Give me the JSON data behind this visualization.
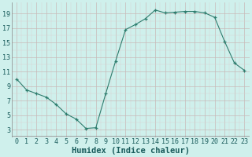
{
  "x": [
    0,
    1,
    2,
    3,
    4,
    5,
    6,
    7,
    8,
    9,
    10,
    11,
    12,
    13,
    14,
    15,
    16,
    17,
    18,
    19,
    20,
    21,
    22,
    23
  ],
  "y": [
    10,
    8.5,
    8,
    7.5,
    6.5,
    5.2,
    4.5,
    3.2,
    3.3,
    8,
    12.5,
    16.8,
    17.5,
    18.3,
    19.5,
    19.1,
    19.2,
    19.3,
    19.3,
    19.1,
    18.5,
    15.2,
    12.2,
    11.2
  ],
  "line_color": "#2e7d6e",
  "marker": "+",
  "bg_color": "#cff0ec",
  "grid_color_major": "#c8b8b8",
  "grid_color_minor": "#ddd0d0",
  "xlabel": "Humidex (Indice chaleur)",
  "xlabel_fontsize": 7.5,
  "ylabel_ticks": [
    3,
    5,
    7,
    9,
    11,
    13,
    15,
    17,
    19
  ],
  "xlim": [
    -0.5,
    23.5
  ],
  "ylim": [
    2.2,
    20.5
  ],
  "xticks": [
    0,
    1,
    2,
    3,
    4,
    5,
    6,
    7,
    8,
    9,
    10,
    11,
    12,
    13,
    14,
    15,
    16,
    17,
    18,
    19,
    20,
    21,
    22,
    23
  ],
  "tick_fontsize": 6,
  "linewidth": 0.8,
  "markersize": 3.5
}
